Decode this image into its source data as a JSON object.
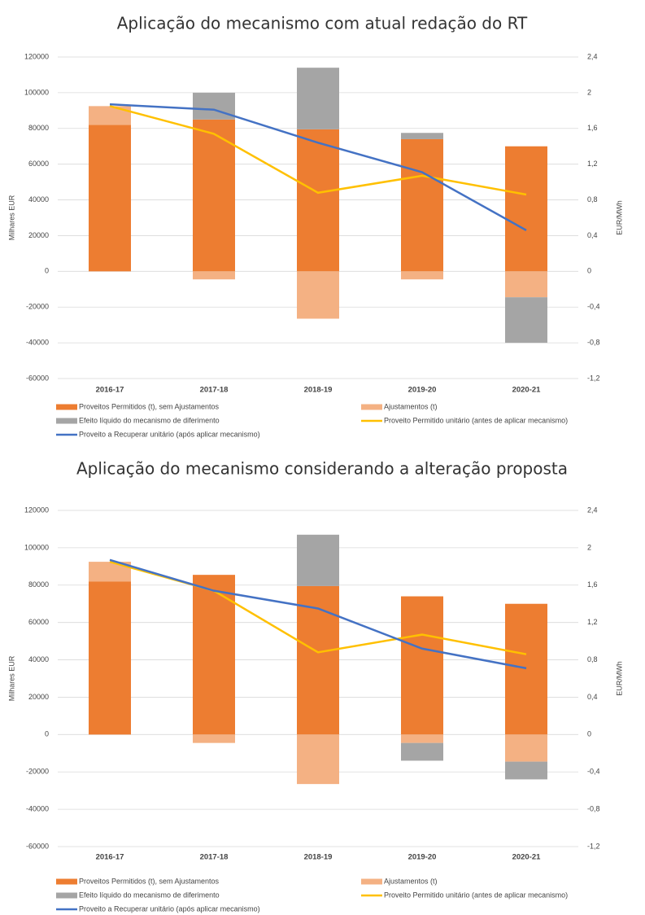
{
  "chart_data": [
    {
      "type": "bar",
      "title": "Aplicação do mecanismo com atual redação do RT",
      "y_label": "Milhares EUR",
      "y2_label": "EUR/MWh",
      "categories": [
        "2016-17",
        "2017-18",
        "2018-19",
        "2019-20",
        "2020-21"
      ],
      "ylim": [
        -60000,
        120000
      ],
      "yticks": [
        -60000,
        -40000,
        -20000,
        0,
        20000,
        40000,
        60000,
        80000,
        100000,
        120000
      ],
      "y2lim": [
        -1.2,
        2.4
      ],
      "y2ticks": [
        {
          "value": -1.2,
          "label": "-1,2"
        },
        {
          "value": -0.8,
          "label": "-0,8"
        },
        {
          "value": -0.4,
          "label": "-0,4"
        },
        0,
        {
          "value": 0.4,
          "label": "0,4"
        },
        {
          "value": 0.8,
          "label": "0,8"
        },
        {
          "value": 1.2,
          "label": "1,2"
        },
        {
          "value": 1.6,
          "label": "1,6"
        },
        2,
        {
          "value": 2.4,
          "label": "2,4"
        }
      ],
      "grid": true,
      "series": [
        {
          "name": "Proveitos Permitidos (t), sem Ajustamentos",
          "color": "#ed7d31",
          "values": [
            82000,
            85000,
            79500,
            74000,
            70000
          ]
        },
        {
          "name": "Ajustamentos (t)",
          "color": "#f4b183",
          "values": [
            10500,
            -4500,
            -26500,
            -4500,
            -14500
          ]
        },
        {
          "name": "Efeito líquido do mecanismo de diferimento",
          "color": "#a5a5a5",
          "values": [
            0,
            15000,
            34500,
            3500,
            -25500
          ]
        },
        {
          "name": "Proveito Permitido unitário (antes de aplicar mecanismo)",
          "color": "#ffc000",
          "axis": "y2",
          "values": [
            1.85,
            1.54,
            0.88,
            1.07,
            0.86
          ]
        },
        {
          "name": "Proveito a Recuperar unitário (após aplicar mecanismo)",
          "color": "#4472c4",
          "axis": "y2",
          "values": [
            1.87,
            1.81,
            1.44,
            1.11,
            0.46
          ]
        }
      ]
    },
    {
      "type": "bar",
      "title": "Aplicação do mecanismo considerando a alteração proposta",
      "y_label": "Milhares EUR",
      "y2_label": "EUR/MWh",
      "categories": [
        "2016-17",
        "2017-18",
        "2018-19",
        "2019-20",
        "2020-21"
      ],
      "ylim": [
        -60000,
        120000
      ],
      "yticks": [
        -60000,
        -40000,
        -20000,
        0,
        20000,
        40000,
        60000,
        80000,
        100000,
        120000
      ],
      "y2lim": [
        -1.2,
        2.4
      ],
      "y2ticks": [
        {
          "value": -1.2,
          "label": "-1,2"
        },
        {
          "value": -0.8,
          "label": "-0,8"
        },
        {
          "value": -0.4,
          "label": "-0,4"
        },
        0,
        {
          "value": 0.4,
          "label": "0,4"
        },
        {
          "value": 0.8,
          "label": "0,8"
        },
        {
          "value": 1.2,
          "label": "1,2"
        },
        {
          "value": 1.6,
          "label": "1,6"
        },
        2,
        {
          "value": 2.4,
          "label": "2,4"
        }
      ],
      "grid": true,
      "series": [
        {
          "name": "Proveitos Permitidos (t), sem Ajustamentos",
          "color": "#ed7d31",
          "values": [
            82000,
            85500,
            79500,
            74000,
            70000
          ]
        },
        {
          "name": "Ajustamentos (t)",
          "color": "#f4b183",
          "values": [
            10500,
            -4500,
            -26500,
            -4500,
            -14500
          ]
        },
        {
          "name": "Efeito líquido do mecanismo de diferimento",
          "color": "#a5a5a5",
          "values": [
            0,
            0,
            27500,
            -9500,
            -9500
          ]
        },
        {
          "name": "Proveito Permitido unitário (antes de aplicar mecanismo)",
          "color": "#ffc000",
          "axis": "y2",
          "values": [
            1.85,
            1.54,
            0.88,
            1.07,
            0.86
          ]
        },
        {
          "name": "Proveito a Recuperar unitário (após aplicar mecanismo)",
          "color": "#4472c4",
          "axis": "y2",
          "values": [
            1.87,
            1.54,
            1.35,
            0.92,
            0.71
          ]
        }
      ]
    }
  ]
}
